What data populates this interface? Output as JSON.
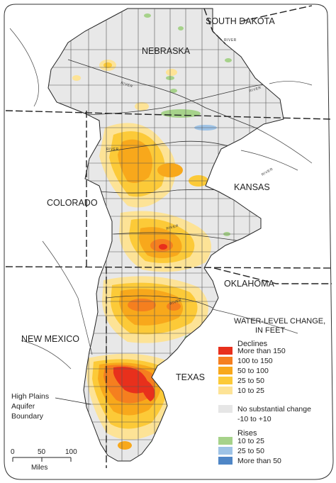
{
  "states": {
    "south_dakota": "SOUTH DAKOTA",
    "nebraska": "NEBRASKA",
    "colorado": "COLORADO",
    "kansas": "KANSAS",
    "oklahoma": "OKLAHOMA",
    "new_mexico": "NEW MEXICO",
    "texas": "TEXAS"
  },
  "river_label": "RIVER",
  "legend": {
    "title_line1": "WATER-LEVEL CHANGE,",
    "title_line2": "IN FEET",
    "declines_heading": "Declines",
    "declines": [
      {
        "label": "More than 150",
        "color": "#e8301c"
      },
      {
        "label": "100 to 150",
        "color": "#f57f1f"
      },
      {
        "label": "50 to 100",
        "color": "#f8a81b"
      },
      {
        "label": "25 to  50",
        "color": "#fcca38"
      },
      {
        "label": "10 to  25",
        "color": "#fde396"
      }
    ],
    "no_change_line1": "No substantial change",
    "no_change_line2": "-10 to +10",
    "no_change_color": "#e6e6e6",
    "rises_heading": "Rises",
    "rises": [
      {
        "label": "10 to  25",
        "color": "#a6d28a"
      },
      {
        "label": "25 to  50",
        "color": "#9ec3e6"
      },
      {
        "label": "More than 50",
        "color": "#4f86c6"
      }
    ]
  },
  "boundary_label": {
    "line1": "High Plains",
    "line2": "Aquifer",
    "line3": "Boundary"
  },
  "scale": {
    "tick_0": "0",
    "tick_50": "50",
    "tick_100": "100",
    "unit": "Miles"
  },
  "colors": {
    "aquifer_base": "#e8e8e8",
    "outline": "#222222",
    "background": "#ffffff"
  }
}
